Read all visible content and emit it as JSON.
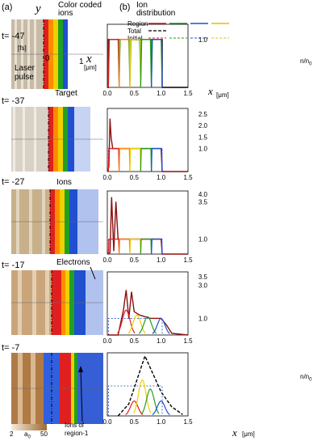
{
  "labels": {
    "panel_a": "(a)",
    "panel_b": "(b)",
    "color_coded_1": "Color coded",
    "color_coded_2": "ions",
    "ion_dist_1": "Ion",
    "ion_dist_2": "distribution",
    "y_axis": "y",
    "x_axis": "x",
    "x_unit": "[μm]",
    "fs_unit": "[fs]",
    "origin_zero": "0",
    "x_one": "1",
    "laser_1": "Laser",
    "laser_2": "pulse",
    "target": "Target",
    "ions": "Ions",
    "electrons": "Electrons",
    "ions_region_1": "Ions of",
    "ions_region_2": "region-1",
    "colorbar_min": "2",
    "colorbar_mid": "a",
    "colorbar_sub": "0",
    "colorbar_max": "50",
    "ylabel_n": "n",
    "ylabel_slash": "/n",
    "ylabel_sub": "0"
  },
  "legend": {
    "region": "Region",
    "total": "Total",
    "initial": "Initial",
    "region_colors": [
      "#e02020",
      "#20a020",
      "#2050d0",
      "#e0c000"
    ]
  },
  "times": [
    "t= -47",
    "t= -37",
    "t= -27",
    "t= -17",
    "t= -7"
  ],
  "colors": {
    "red": "#e02020",
    "orange": "#ff8c00",
    "yellow": "#f0d000",
    "green": "#20a020",
    "blue": "#2050d0",
    "dark_red": "#a01010",
    "beige": "#c8bba6",
    "tan": "#c89a60"
  },
  "chart_data": [
    {
      "type": "line",
      "panel": "t= -47",
      "xlim": [
        0,
        1.5
      ],
      "ylim": [
        0,
        1.25
      ],
      "xticks": [
        "0.0",
        "0.5",
        "1.0",
        "1.5"
      ],
      "yticks": [
        "1.0"
      ],
      "xlabel": "x",
      "series": [
        {
          "name": "Total",
          "x": [
            0.0,
            0.02,
            0.02,
            1.02,
            1.02,
            1.5
          ],
          "y": [
            0,
            0,
            1,
            1,
            0,
            0
          ]
        },
        {
          "name": "Region",
          "x": [
            0.02,
            0.04,
            0.2,
            0.22,
            0.24,
            0.4,
            0.42,
            0.44,
            0.6,
            0.62,
            0.64,
            0.8,
            0.82,
            0.84,
            1.0,
            1.02
          ],
          "y": [
            0,
            1,
            1,
            0,
            1,
            1,
            0,
            1,
            1,
            0,
            1,
            1,
            0,
            1,
            1,
            0
          ]
        }
      ]
    },
    {
      "type": "line",
      "panel": "t= -37",
      "xlim": [
        0,
        1.5
      ],
      "ylim": [
        0,
        2.6
      ],
      "xticks": [
        "0.0",
        "0.5",
        "1.0",
        "1.5"
      ],
      "yticks": [
        "1.0",
        "1.5",
        "2.0",
        "2.5"
      ],
      "series": [
        {
          "name": "Total",
          "x": [
            0.0,
            0.03,
            0.05,
            0.07,
            0.1,
            0.2,
            1.0,
            1.02,
            1.5
          ],
          "y": [
            0,
            0.2,
            2.3,
            1.5,
            1.0,
            1.0,
            1.0,
            0,
            0
          ]
        }
      ]
    },
    {
      "type": "line",
      "panel": "t= -27",
      "xlim": [
        0,
        1.5
      ],
      "ylim": [
        0,
        4.0
      ],
      "xticks": [
        "0.0",
        "0.5",
        "1.0",
        "1.5"
      ],
      "yticks": [
        "1.0",
        "3.5",
        "4.0"
      ],
      "series": [
        {
          "name": "Total",
          "x": [
            0.0,
            0.05,
            0.08,
            0.12,
            0.16,
            0.2,
            0.3,
            1.0,
            1.02,
            1.5
          ],
          "y": [
            0,
            0.1,
            3.8,
            0.2,
            3.5,
            1.0,
            1.0,
            1.0,
            0,
            0
          ]
        }
      ]
    },
    {
      "type": "line",
      "panel": "t= -17",
      "xlim": [
        0,
        1.5
      ],
      "ylim": [
        0,
        3.6
      ],
      "xticks": [
        "0.0",
        "0.5",
        "1.0",
        "1.5"
      ],
      "yticks": [
        "1.0",
        "3.0",
        "3.5"
      ],
      "series": [
        {
          "name": "Total",
          "x": [
            0.0,
            0.2,
            0.3,
            0.35,
            0.4,
            0.45,
            0.5,
            0.6,
            0.8,
            1.0,
            1.1,
            1.2,
            1.5
          ],
          "y": [
            0,
            0,
            1.5,
            2.7,
            1.0,
            2.6,
            1.4,
            1.2,
            1.0,
            1.0,
            0.6,
            0.1,
            0
          ]
        }
      ]
    },
    {
      "type": "line",
      "panel": "t= -7",
      "xlim": [
        0,
        1.5
      ],
      "ylim": [
        0,
        2.0
      ],
      "xticks": [
        "0.0",
        "0.5",
        "1.0",
        "1.5"
      ],
      "ylabel": "n/n0",
      "series": [
        {
          "name": "Total",
          "x": [
            0.2,
            0.4,
            0.55,
            0.7,
            0.8,
            1.0,
            1.2,
            1.4
          ],
          "y": [
            0,
            0.4,
            1.2,
            2.0,
            1.6,
            0.8,
            0.3,
            0.05
          ]
        }
      ]
    }
  ]
}
